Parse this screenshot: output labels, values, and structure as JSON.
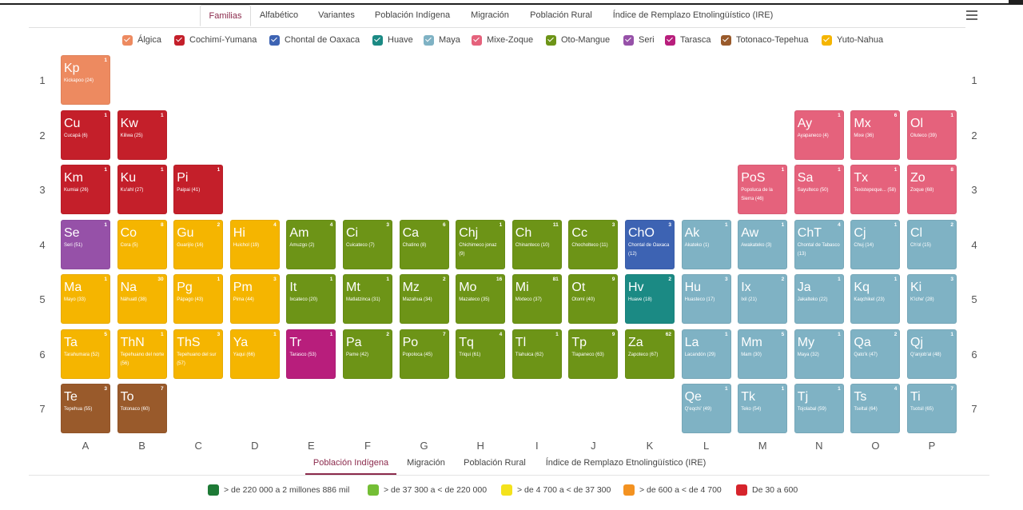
{
  "nav": {
    "tabs": [
      {
        "label": "Familias",
        "active": true
      },
      {
        "label": "Alfabético",
        "active": false
      },
      {
        "label": "Variantes",
        "active": false
      },
      {
        "label": "Población Indígena",
        "active": false
      },
      {
        "label": "Migración",
        "active": false
      },
      {
        "label": "Población Rural",
        "active": false
      },
      {
        "label": "Índice de Remplazo Etnolingüístico (IRE)",
        "active": false
      }
    ],
    "menu_icon": "hamburger-menu-icon"
  },
  "families": [
    {
      "label": "Álgica",
      "color": "#ed8a60"
    },
    {
      "label": "Cochimí-Yumana",
      "color": "#c41f2a"
    },
    {
      "label": "Chontal de Oaxaca",
      "color": "#3d63b3"
    },
    {
      "label": "Huave",
      "color": "#1b8a84"
    },
    {
      "label": "Maya",
      "color": "#7fb2c4"
    },
    {
      "label": "Mixe-Zoque",
      "color": "#e5627c"
    },
    {
      "label": "Oto-Mangue",
      "color": "#6d9417"
    },
    {
      "label": "Seri",
      "color": "#9651a8"
    },
    {
      "label": "Tarasca",
      "color": "#b81e7c"
    },
    {
      "label": "Totonaco-Tepehua",
      "color": "#995a2b"
    },
    {
      "label": "Yuto-Nahua",
      "color": "#f5b500"
    }
  ],
  "rows": [
    "1",
    "2",
    "3",
    "4",
    "5",
    "6",
    "7"
  ],
  "cols": [
    "A",
    "B",
    "C",
    "D",
    "E",
    "F",
    "G",
    "H",
    "I",
    "J",
    "K",
    "L",
    "M",
    "N",
    "O",
    "P"
  ],
  "elements": [
    {
      "sym": "Kp",
      "name": "Kickapoo (24)",
      "count": "1",
      "fam": 0,
      "col": 0,
      "row": 0
    },
    {
      "sym": "Cu",
      "name": "Cucapá (6)",
      "count": "1",
      "fam": 1,
      "col": 0,
      "row": 1
    },
    {
      "sym": "Kw",
      "name": "Kiliwa (25)",
      "count": "1",
      "fam": 1,
      "col": 1,
      "row": 1
    },
    {
      "sym": "Ay",
      "name": "Ayapaneco (4)",
      "count": "1",
      "fam": 5,
      "col": 13,
      "row": 1
    },
    {
      "sym": "Mx",
      "name": "Mixe (36)",
      "count": "6",
      "fam": 5,
      "col": 14,
      "row": 1
    },
    {
      "sym": "Ol",
      "name": "Oluteco (39)",
      "count": "1",
      "fam": 5,
      "col": 15,
      "row": 1
    },
    {
      "sym": "Km",
      "name": "Kumiai (26)",
      "count": "1",
      "fam": 1,
      "col": 0,
      "row": 2
    },
    {
      "sym": "Ku",
      "name": "Ku'ahl (27)",
      "count": "1",
      "fam": 1,
      "col": 1,
      "row": 2
    },
    {
      "sym": "Pi",
      "name": "Paipai (41)",
      "count": "1",
      "fam": 1,
      "col": 2,
      "row": 2
    },
    {
      "sym": "PoS",
      "name": "Popoluca de la Sierra (46)",
      "count": "1",
      "fam": 5,
      "col": 12,
      "row": 2
    },
    {
      "sym": "Sa",
      "name": "Sayulteco (50)",
      "count": "1",
      "fam": 5,
      "col": 13,
      "row": 2
    },
    {
      "sym": "Tx",
      "name": "Texistepeque... (58)",
      "count": "1",
      "fam": 5,
      "col": 14,
      "row": 2
    },
    {
      "sym": "Zo",
      "name": "Zoque (68)",
      "count": "8",
      "fam": 5,
      "col": 15,
      "row": 2
    },
    {
      "sym": "Se",
      "name": "Seri (51)",
      "count": "1",
      "fam": 7,
      "col": 0,
      "row": 3
    },
    {
      "sym": "Co",
      "name": "Cora (5)",
      "count": "8",
      "fam": 10,
      "col": 1,
      "row": 3
    },
    {
      "sym": "Gu",
      "name": "Guarijío (16)",
      "count": "2",
      "fam": 10,
      "col": 2,
      "row": 3
    },
    {
      "sym": "Hi",
      "name": "Huichol (19)",
      "count": "4",
      "fam": 10,
      "col": 3,
      "row": 3
    },
    {
      "sym": "Am",
      "name": "Amuzgo (2)",
      "count": "4",
      "fam": 6,
      "col": 4,
      "row": 3
    },
    {
      "sym": "Ci",
      "name": "Cuicateco (7)",
      "count": "3",
      "fam": 6,
      "col": 5,
      "row": 3
    },
    {
      "sym": "Ca",
      "name": "Chatino (8)",
      "count": "6",
      "fam": 6,
      "col": 6,
      "row": 3
    },
    {
      "sym": "Chj",
      "name": "Chichimeco jonaz (9)",
      "count": "1",
      "fam": 6,
      "col": 7,
      "row": 3
    },
    {
      "sym": "Ch",
      "name": "Chinanteco (10)",
      "count": "11",
      "fam": 6,
      "col": 8,
      "row": 3
    },
    {
      "sym": "Cc",
      "name": "Chocholteco (11)",
      "count": "3",
      "fam": 6,
      "col": 9,
      "row": 3
    },
    {
      "sym": "ChO",
      "name": "Chontal de Oaxaca (12)",
      "count": "3",
      "fam": 2,
      "col": 10,
      "row": 3
    },
    {
      "sym": "Ak",
      "name": "Akateko (1)",
      "count": "1",
      "fam": 4,
      "col": 11,
      "row": 3
    },
    {
      "sym": "Aw",
      "name": "Awakateko (3)",
      "count": "1",
      "fam": 4,
      "col": 12,
      "row": 3
    },
    {
      "sym": "ChT",
      "name": "Chontal de Tabasco (13)",
      "count": "4",
      "fam": 4,
      "col": 13,
      "row": 3
    },
    {
      "sym": "Cj",
      "name": "Chuj (14)",
      "count": "1",
      "fam": 4,
      "col": 14,
      "row": 3
    },
    {
      "sym": "Cl",
      "name": "Ch'ol (15)",
      "count": "2",
      "fam": 4,
      "col": 15,
      "row": 3
    },
    {
      "sym": "Ma",
      "name": "Mayo (33)",
      "count": "1",
      "fam": 10,
      "col": 0,
      "row": 4
    },
    {
      "sym": "Na",
      "name": "Náhuatl (38)",
      "count": "30",
      "fam": 10,
      "col": 1,
      "row": 4
    },
    {
      "sym": "Pg",
      "name": "Pápago (43)",
      "count": "1",
      "fam": 10,
      "col": 2,
      "row": 4
    },
    {
      "sym": "Pm",
      "name": "Pima (44)",
      "count": "3",
      "fam": 10,
      "col": 3,
      "row": 4
    },
    {
      "sym": "It",
      "name": "Ixcateco (20)",
      "count": "1",
      "fam": 6,
      "col": 4,
      "row": 4
    },
    {
      "sym": "Mt",
      "name": "Matlatzinca (31)",
      "count": "1",
      "fam": 6,
      "col": 5,
      "row": 4
    },
    {
      "sym": "Mz",
      "name": "Mazahua (34)",
      "count": "2",
      "fam": 6,
      "col": 6,
      "row": 4
    },
    {
      "sym": "Mo",
      "name": "Mazateco (35)",
      "count": "16",
      "fam": 6,
      "col": 7,
      "row": 4
    },
    {
      "sym": "Mi",
      "name": "Mixteco (37)",
      "count": "81",
      "fam": 6,
      "col": 8,
      "row": 4
    },
    {
      "sym": "Ot",
      "name": "Otomí (40)",
      "count": "9",
      "fam": 6,
      "col": 9,
      "row": 4
    },
    {
      "sym": "Hv",
      "name": "Huave (18)",
      "count": "2",
      "fam": 3,
      "col": 10,
      "row": 4
    },
    {
      "sym": "Hu",
      "name": "Huasteco (17)",
      "count": "3",
      "fam": 4,
      "col": 11,
      "row": 4
    },
    {
      "sym": "Ix",
      "name": "Ixil (21)",
      "count": "2",
      "fam": 4,
      "col": 12,
      "row": 4
    },
    {
      "sym": "Ja",
      "name": "Jakalteko (22)",
      "count": "1",
      "fam": 4,
      "col": 13,
      "row": 4
    },
    {
      "sym": "Kq",
      "name": "Kaqchikel (23)",
      "count": "1",
      "fam": 4,
      "col": 14,
      "row": 4
    },
    {
      "sym": "Ki",
      "name": "K'iche' (28)",
      "count": "3",
      "fam": 4,
      "col": 15,
      "row": 4
    },
    {
      "sym": "Ta",
      "name": "Tarahumara (52)",
      "count": "5",
      "fam": 10,
      "col": 0,
      "row": 5
    },
    {
      "sym": "ThN",
      "name": "Tepehuano del norte (56)",
      "count": "1",
      "fam": 10,
      "col": 1,
      "row": 5
    },
    {
      "sym": "ThS",
      "name": "Tepehuano del sur (57)",
      "count": "3",
      "fam": 10,
      "col": 2,
      "row": 5
    },
    {
      "sym": "Ya",
      "name": "Yaqui (66)",
      "count": "1",
      "fam": 10,
      "col": 3,
      "row": 5
    },
    {
      "sym": "Tr",
      "name": "Tarasco (53)",
      "count": "1",
      "fam": 8,
      "col": 4,
      "row": 5
    },
    {
      "sym": "Pa",
      "name": "Pame (42)",
      "count": "2",
      "fam": 6,
      "col": 5,
      "row": 5
    },
    {
      "sym": "Po",
      "name": "Popoloca (45)",
      "count": "7",
      "fam": 6,
      "col": 6,
      "row": 5
    },
    {
      "sym": "Tq",
      "name": "Triqui (61)",
      "count": "4",
      "fam": 6,
      "col": 7,
      "row": 5
    },
    {
      "sym": "Tl",
      "name": "Tlahuica (62)",
      "count": "1",
      "fam": 6,
      "col": 8,
      "row": 5
    },
    {
      "sym": "Tp",
      "name": "Tlapaneco (63)",
      "count": "9",
      "fam": 6,
      "col": 9,
      "row": 5
    },
    {
      "sym": "Za",
      "name": "Zapoteco (67)",
      "count": "62",
      "fam": 6,
      "col": 10,
      "row": 5
    },
    {
      "sym": "La",
      "name": "Lacandón (29)",
      "count": "1",
      "fam": 4,
      "col": 11,
      "row": 5
    },
    {
      "sym": "Mm",
      "name": "Mam (30)",
      "count": "5",
      "fam": 4,
      "col": 12,
      "row": 5
    },
    {
      "sym": "My",
      "name": "Maya (32)",
      "count": "1",
      "fam": 4,
      "col": 13,
      "row": 5
    },
    {
      "sym": "Qa",
      "name": "Qato'k (47)",
      "count": "2",
      "fam": 4,
      "col": 14,
      "row": 5
    },
    {
      "sym": "Qj",
      "name": "Q'anjob'al (48)",
      "count": "1",
      "fam": 4,
      "col": 15,
      "row": 5
    },
    {
      "sym": "Te",
      "name": "Tepehua (55)",
      "count": "3",
      "fam": 9,
      "col": 0,
      "row": 6
    },
    {
      "sym": "To",
      "name": "Totonaco (60)",
      "count": "7",
      "fam": 9,
      "col": 1,
      "row": 6
    },
    {
      "sym": "Qe",
      "name": "Q'eqchi' (49)",
      "count": "1",
      "fam": 4,
      "col": 11,
      "row": 6
    },
    {
      "sym": "Tk",
      "name": "Teko (54)",
      "count": "1",
      "fam": 4,
      "col": 12,
      "row": 6
    },
    {
      "sym": "Tj",
      "name": "Tojolabal (59)",
      "count": "1",
      "fam": 4,
      "col": 13,
      "row": 6
    },
    {
      "sym": "Ts",
      "name": "Tseltal (64)",
      "count": "4",
      "fam": 4,
      "col": 14,
      "row": 6
    },
    {
      "sym": "Ti",
      "name": "Tsotsil (65)",
      "count": "7",
      "fam": 4,
      "col": 15,
      "row": 6
    }
  ],
  "bottom_tabs": [
    {
      "label": "Población Indígena",
      "active": true
    },
    {
      "label": "Migración",
      "active": false
    },
    {
      "label": "Población Rural",
      "active": false
    },
    {
      "label": "Índice de Remplazo Etnolingüístico (IRE)",
      "active": false
    }
  ],
  "scale": [
    {
      "label": "> de 220 000 a 2 millones 886 mil",
      "color": "#1e7a36"
    },
    {
      "label": "> de 37 300 a < de 220 000",
      "color": "#74be35"
    },
    {
      "label": "> de 4 700 a < de 37 300",
      "color": "#f4e21c"
    },
    {
      "label": "> de 600 a < de 4 700",
      "color": "#f39221"
    },
    {
      "label": "De 30 a 600",
      "color": "#d6242c"
    }
  ]
}
